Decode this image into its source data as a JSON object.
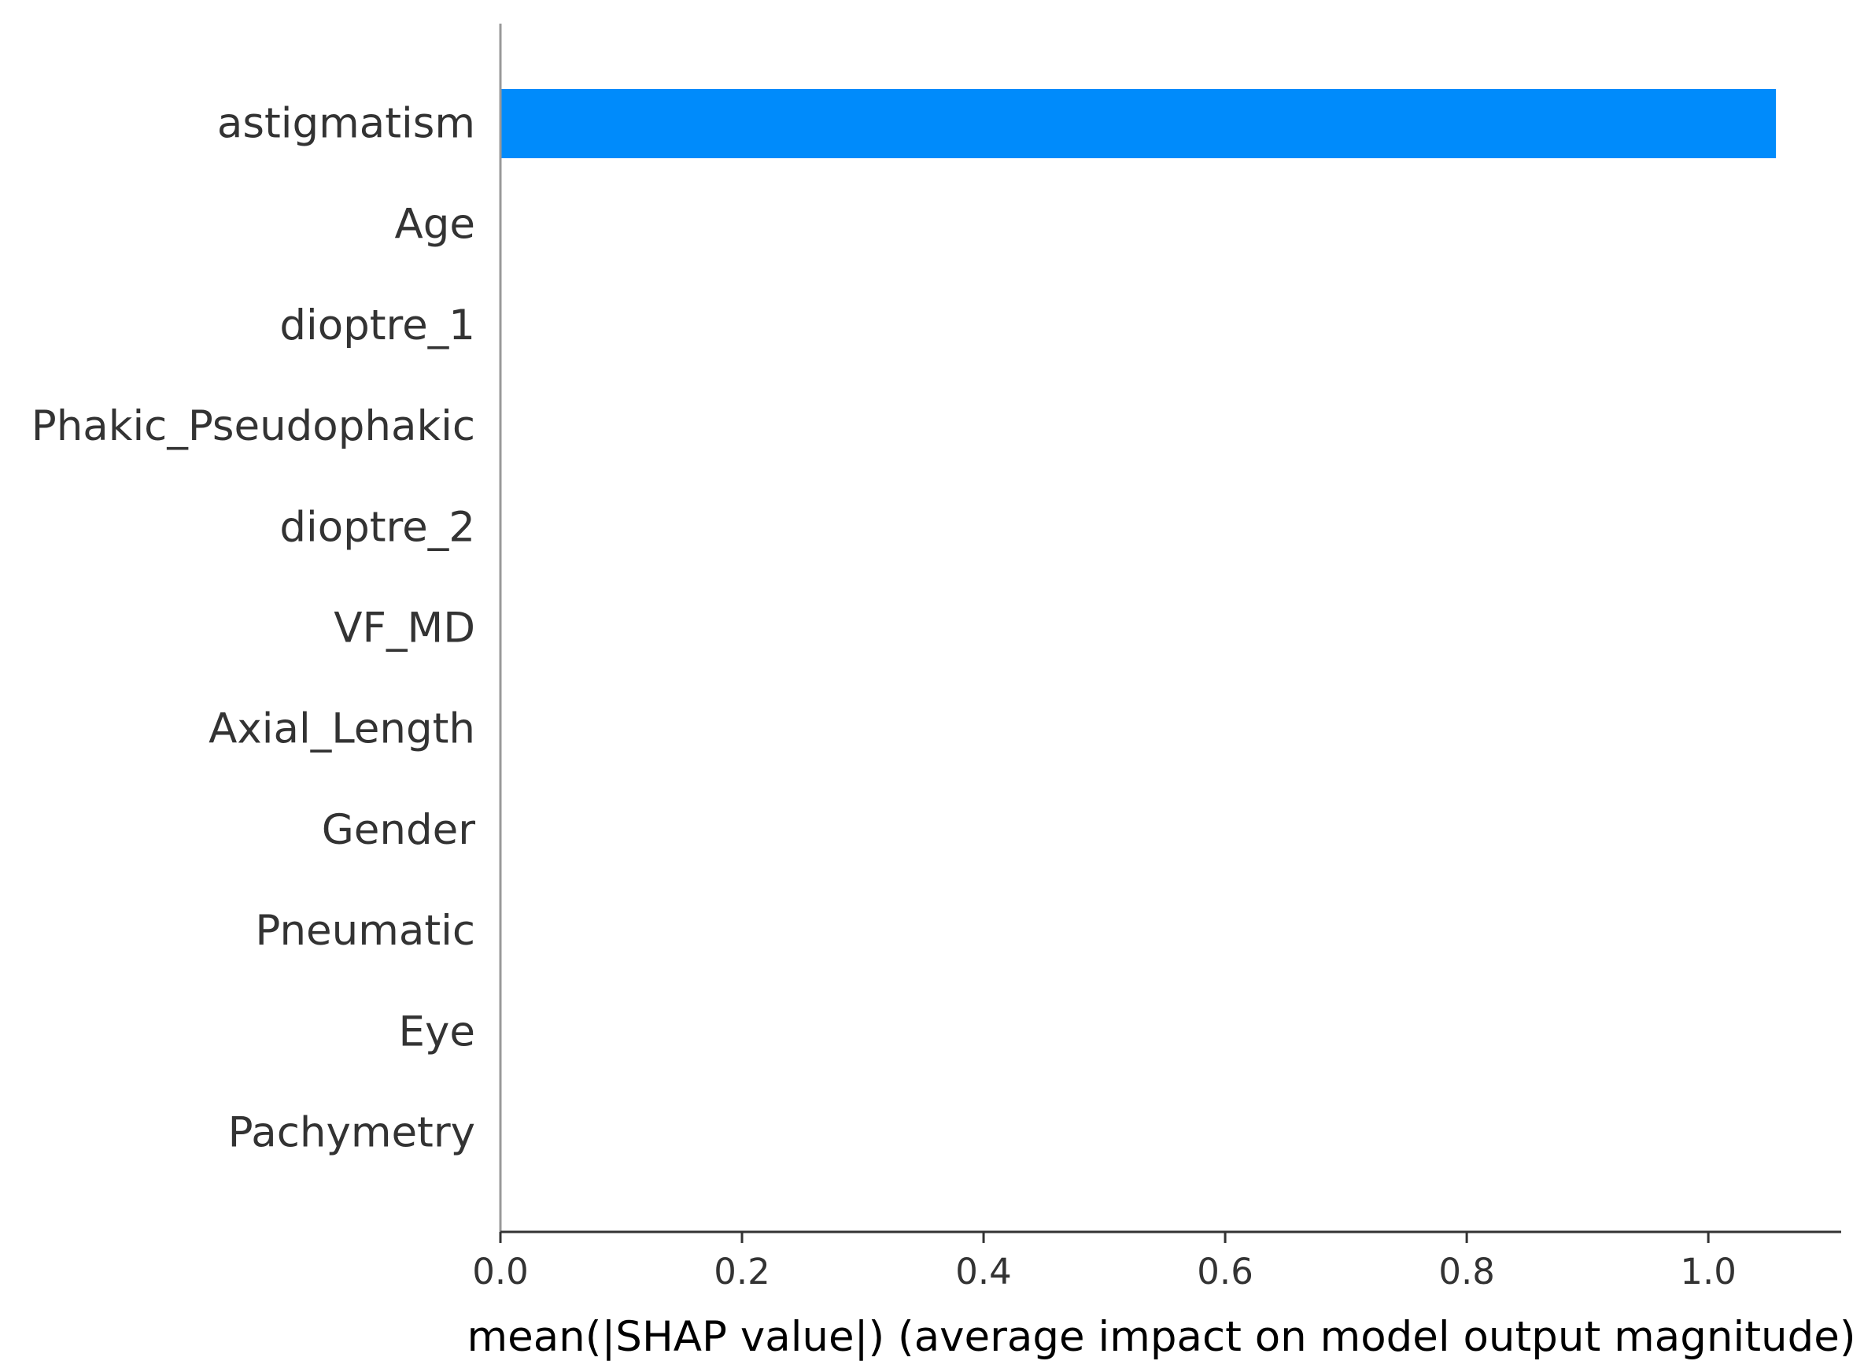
{
  "chart_data": {
    "type": "bar",
    "orientation": "horizontal",
    "categories": [
      "astigmatism",
      "Age",
      "dioptre_1",
      "Phakic_Pseudophakic",
      "dioptre_2",
      "VF_MD",
      "Axial_Length",
      "Gender",
      "Pneumatic",
      "Eye",
      "Pachymetry"
    ],
    "values": [
      1.056,
      0,
      0,
      0,
      0,
      0,
      0,
      0,
      0,
      0,
      0
    ],
    "xlabel": "mean(|SHAP value|) (average impact on model output magnitude)",
    "ylabel": "",
    "title": "",
    "xlim": [
      0,
      1.11
    ],
    "xticks": [
      "0.0",
      "0.2",
      "0.4",
      "0.6",
      "0.8",
      "1.0"
    ],
    "bar_color": "#008bfb",
    "grid": false,
    "legend": "none"
  }
}
